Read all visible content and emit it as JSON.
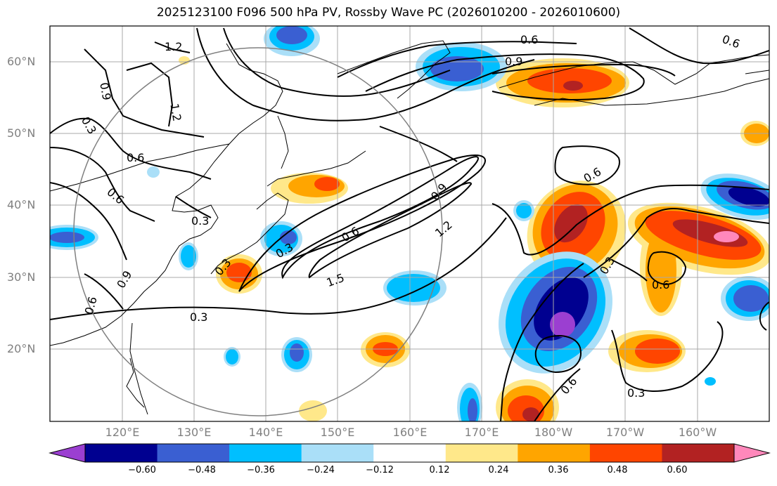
{
  "title": "2025123100 F096 500 hPa PV, Rossby Wave PC (2026010200 - 2026010600)",
  "lat_labels": [
    "60°N",
    "50°N",
    "40°N",
    "30°N",
    "20°N"
  ],
  "lon_labels": [
    "120°E",
    "130°E",
    "140°E",
    "150°E",
    "160°E",
    "170°E",
    "180°W",
    "170°W",
    "160°W"
  ],
  "colorbar": {
    "ticks": [
      "−0.60",
      "−0.48",
      "−0.36",
      "−0.24",
      "−0.12",
      "0.12",
      "0.24",
      "0.36",
      "0.48",
      "0.60"
    ],
    "colors": [
      "#9b3fd1",
      "#000090",
      "#3a5fd2",
      "#00bfff",
      "#aadff8",
      "#ffffff",
      "#ffe88a",
      "#ffa500",
      "#ff4500",
      "#b22222",
      "#ff88bb"
    ]
  },
  "contour_labels": [
    "1.2",
    "0.9",
    "1.2",
    "0.3",
    "0.6",
    "0.6",
    "0.6",
    "0.9",
    "0.3",
    "0.6",
    "0.3",
    "0.6",
    "0.9",
    "1.2",
    "1.5",
    "0.3",
    "0.9",
    "0.6",
    "0.3",
    "0.3",
    "0.6",
    "0.6",
    "0.3",
    "0.6"
  ]
}
